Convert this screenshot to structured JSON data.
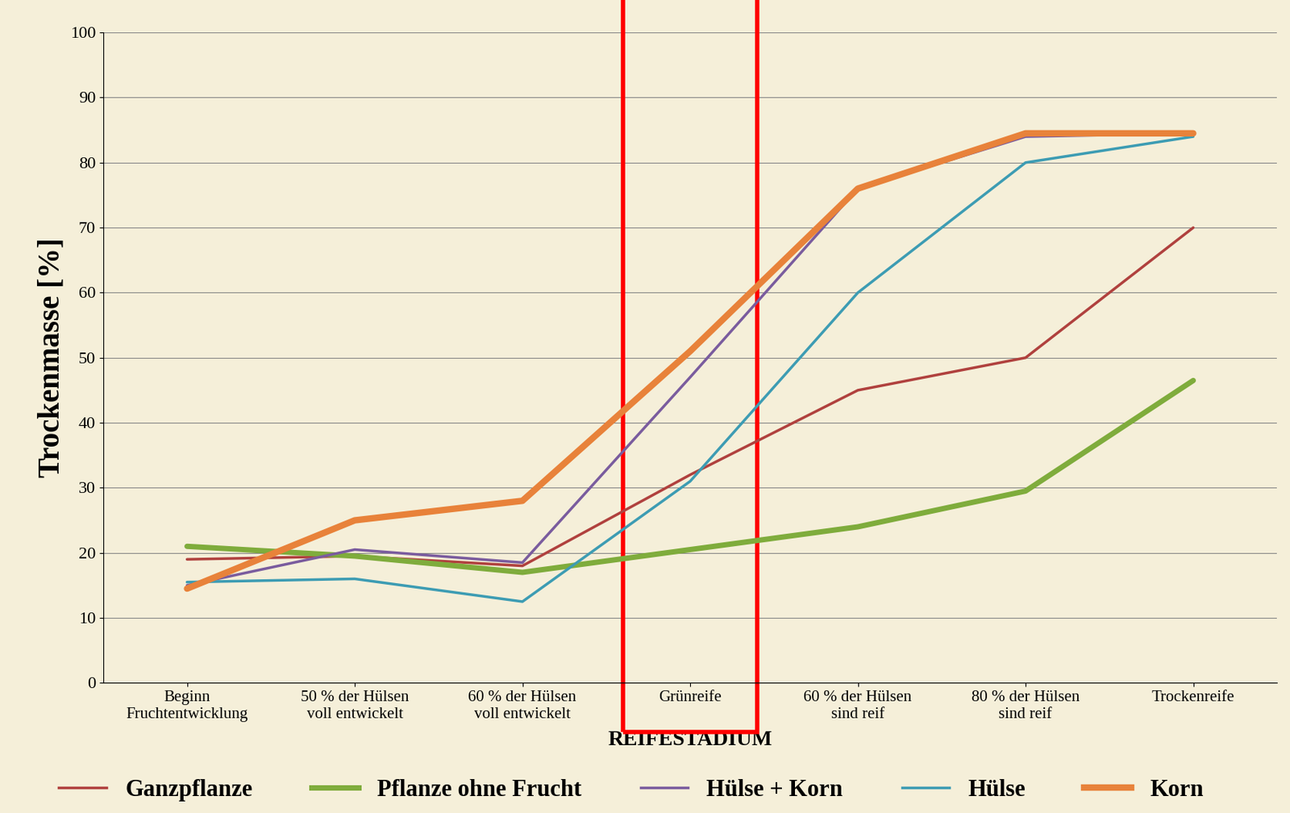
{
  "chart_data": {
    "type": "line",
    "xlabel": "REIFESTADIUM",
    "ylabel": "Trockenmasse [%]",
    "categories": [
      "Beginn\nFruchtentwicklung",
      "50 % der Hülsen\nvoll entwickelt",
      "60 % der Hülsen\nvoll entwickelt",
      "Grünreife",
      "60 % der Hülsen\nsind reif",
      "80 % der Hülsen\nsind reif",
      "Trockenreife"
    ],
    "series": [
      {
        "name": "Ganzpflanze",
        "color": "#b0413e",
        "values": [
          19,
          19.5,
          18,
          32,
          45,
          50,
          70
        ]
      },
      {
        "name": "Pflanze ohne Frucht",
        "color": "#7fac3c",
        "values": [
          21,
          19.5,
          17,
          20.5,
          24,
          29.5,
          46.5
        ]
      },
      {
        "name": "Hülse + Korn",
        "color": "#7a5c9e",
        "values": [
          15,
          20.5,
          18.5,
          47,
          76,
          84,
          84.5
        ]
      },
      {
        "name": "Hülse",
        "color": "#3d9cb3",
        "values": [
          15.5,
          16,
          12.5,
          31,
          60,
          80,
          84
        ]
      },
      {
        "name": "Korn",
        "color": "#e8823a",
        "values": [
          14.5,
          25,
          28,
          51,
          76,
          84.5,
          84.5
        ]
      }
    ],
    "ylim": [
      0,
      100
    ],
    "yticks": [
      0,
      10,
      20,
      30,
      40,
      50,
      60,
      70,
      80,
      90,
      100
    ],
    "grid": true,
    "legend": "bottom"
  }
}
